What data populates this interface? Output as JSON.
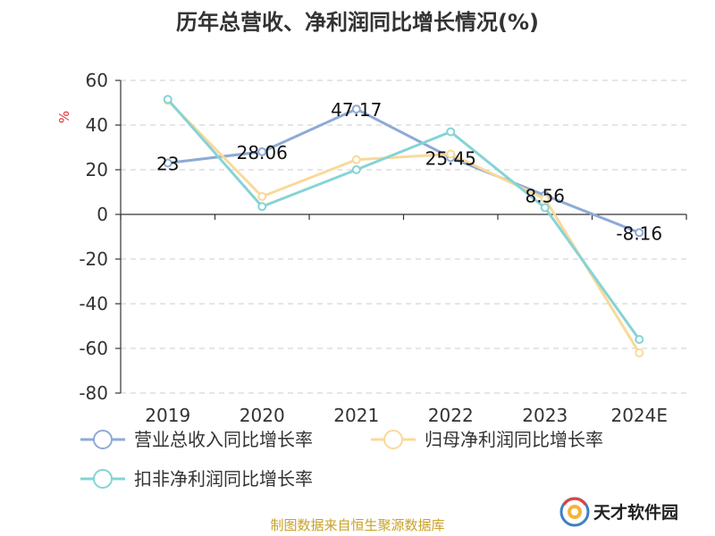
{
  "chart_data": {
    "type": "line",
    "title": "历年总营收、净利润同比增长情况(%)",
    "ylabel": "%",
    "categories": [
      "2019",
      "2020",
      "2021",
      "2022",
      "2023",
      "2024E"
    ],
    "ylim": [
      -80,
      60
    ],
    "yticks": [
      60,
      40,
      20,
      0,
      -20,
      -40,
      -60,
      -80
    ],
    "grid": true,
    "legend_position": "bottom-left",
    "series": [
      {
        "name": "营业总收入同比增长率",
        "color": "#8eaad6",
        "values": [
          23,
          28.06,
          47.17,
          25.45,
          8.56,
          -8.16
        ],
        "labels": [
          "23",
          "28.06",
          "47.17",
          "25.45",
          "8.56",
          "-8.16"
        ]
      },
      {
        "name": "归母净利润同比增长率",
        "color": "#f9d99a",
        "values": [
          51,
          8,
          24.5,
          27,
          7,
          -62
        ],
        "labels": []
      },
      {
        "name": "扣非净利润同比增长率",
        "color": "#86d3d6",
        "values": [
          51.5,
          3.5,
          20,
          37,
          3,
          -56
        ],
        "labels": []
      }
    ]
  },
  "source_text": "制图数据来自恒生聚源数据库",
  "logo": {
    "text": "天才软件园",
    "name": "tiancai-logo-icon"
  }
}
